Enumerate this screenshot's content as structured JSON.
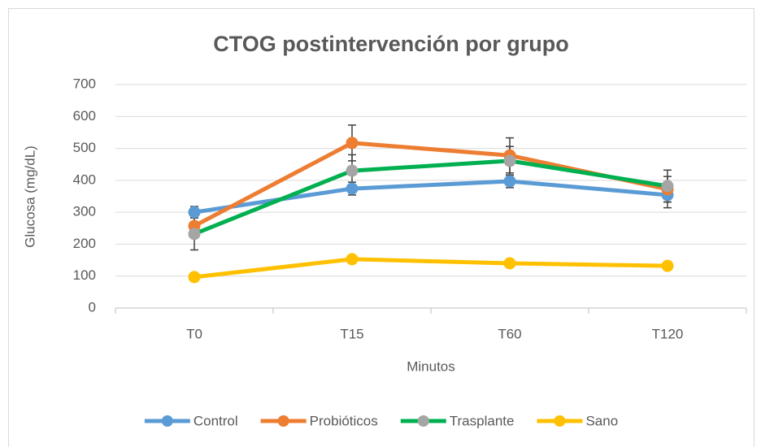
{
  "chart_data": {
    "type": "line",
    "title": "CTOG postintervención por grupo",
    "x_label": "Minutos",
    "y_label": "Glucosa (mg/dL)",
    "categories": [
      "T0",
      "T15",
      "T60",
      "T120"
    ],
    "series": [
      {
        "name": "Control",
        "color": "#5b9bd5",
        "marker_color": "#5b9bd5",
        "values": [
          300,
          374,
          397,
          354
        ],
        "errors": [
          18,
          20,
          20,
          40
        ]
      },
      {
        "name": "Probióticos",
        "color": "#ed7d31",
        "marker_color": "#ed7d31",
        "values": [
          257,
          517,
          478,
          372
        ],
        "errors": [
          25,
          56,
          55,
          40
        ]
      },
      {
        "name": "Trasplante",
        "color": "#00b050",
        "marker_color": "#a5a5a5",
        "values": [
          232,
          430,
          461,
          382
        ],
        "errors": [
          50,
          50,
          45,
          50
        ]
      },
      {
        "name": "Sano",
        "color": "#ffc000",
        "marker_color": "#ffc000",
        "values": [
          97,
          153,
          140,
          132
        ],
        "errors": [
          5,
          8,
          8,
          8
        ]
      }
    ],
    "ylim": [
      0,
      700
    ],
    "yticks": [
      0,
      100,
      200,
      300,
      400,
      500,
      600,
      700
    ],
    "grid": true,
    "legend": "bottom"
  }
}
